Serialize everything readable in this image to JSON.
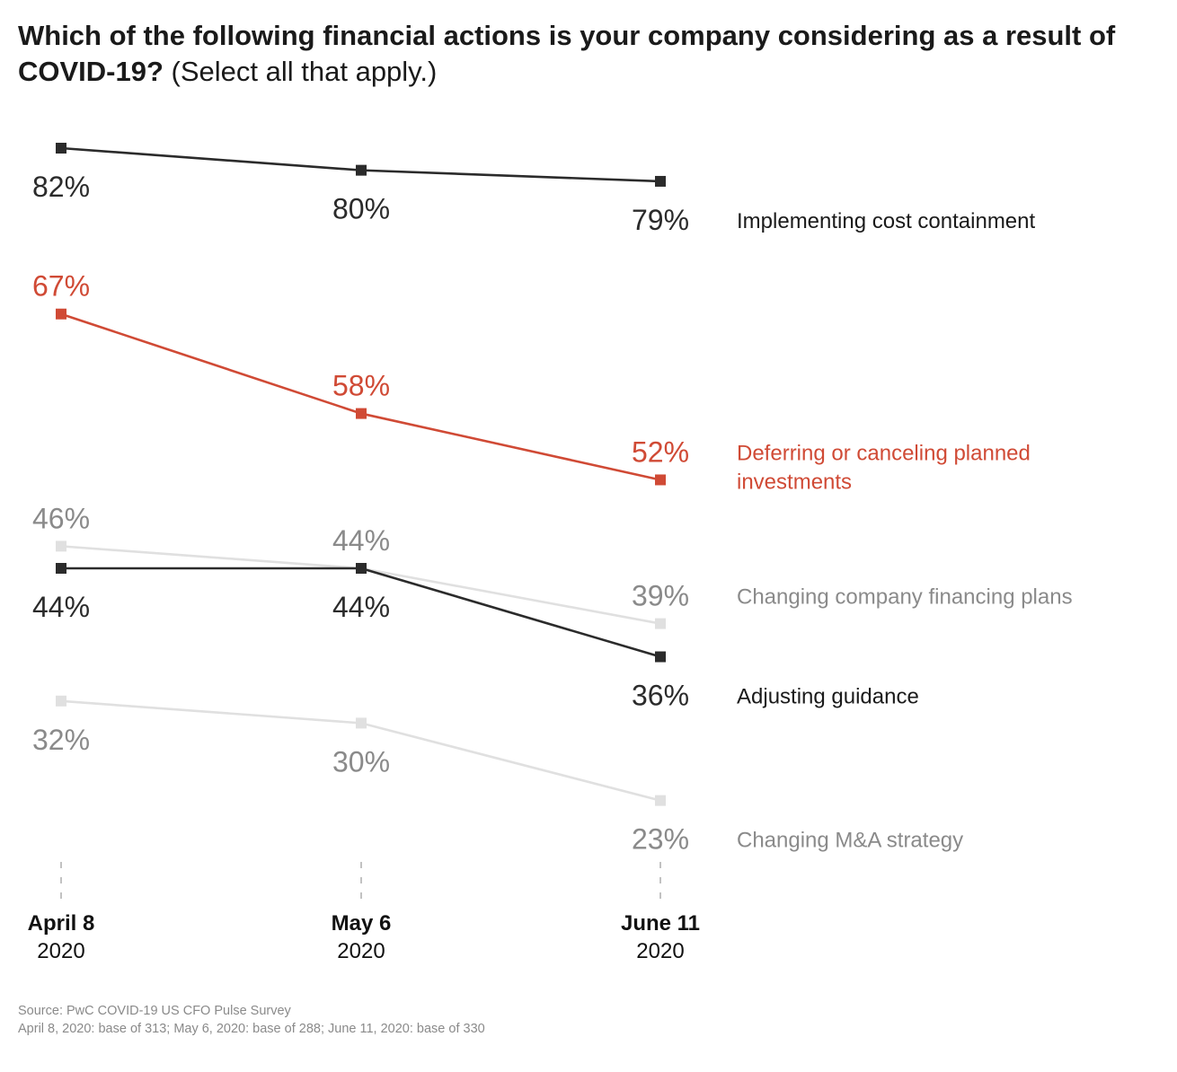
{
  "chart_data": {
    "type": "line",
    "title": "Which of the following financial actions is your company considering as a result of COVID-19?",
    "subtitle": "(Select all that apply.)",
    "xlabel": "",
    "ylabel": "",
    "unit": "%",
    "grid": false,
    "x": [
      {
        "line1": "April 8",
        "line2": "2020"
      },
      {
        "line1": "May 6",
        "line2": "2020"
      },
      {
        "line1": "June 11",
        "line2": "2020"
      }
    ],
    "series": [
      {
        "name": "Implementing cost containment",
        "values": [
          82,
          80,
          79
        ],
        "color": "#2b2b2b",
        "label_color": "#2b2b2b",
        "legend_color": "#1a1a1a",
        "label_pos": [
          "below",
          "below",
          "below"
        ],
        "bold": false
      },
      {
        "name": "Deferring or canceling planned investments",
        "name_lines": [
          "Deferring or canceling planned",
          "investments"
        ],
        "values": [
          67,
          58,
          52
        ],
        "color": "#d04a35",
        "label_color": "#d04a35",
        "legend_color": "#d04a35",
        "label_pos": [
          "above",
          "above",
          "above"
        ],
        "bold": false
      },
      {
        "name": "Changing company financing plans",
        "values": [
          46,
          44,
          39
        ],
        "color": "#e0e0e0",
        "label_color": "#8a8a8a",
        "legend_color": "#8a8a8a",
        "label_pos": [
          "above",
          "above",
          "above"
        ],
        "bold": false
      },
      {
        "name": "Adjusting guidance",
        "values": [
          44,
          44,
          36
        ],
        "color": "#2b2b2b",
        "label_color": "#2b2b2b",
        "legend_color": "#1a1a1a",
        "label_pos": [
          "below",
          "below",
          "below"
        ],
        "bold": false
      },
      {
        "name": "Changing M&A strategy",
        "values": [
          32,
          30,
          23
        ],
        "color": "#e0e0e0",
        "label_color": "#8a8a8a",
        "legend_color": "#8a8a8a",
        "label_pos": [
          "below",
          "below",
          "below"
        ],
        "bold": false
      }
    ],
    "legend": "right, end of each line"
  },
  "title": {
    "bold": "Which of the following financial actions is your company considering as a result of COVID-19?",
    "normal": " (Select all that apply.)"
  },
  "source": {
    "line1": "Source: PwC COVID-19 US CFO Pulse Survey",
    "line2": "April 8, 2020: base of 313; May 6, 2020: base of 288; June 11, 2020: base of 330"
  }
}
